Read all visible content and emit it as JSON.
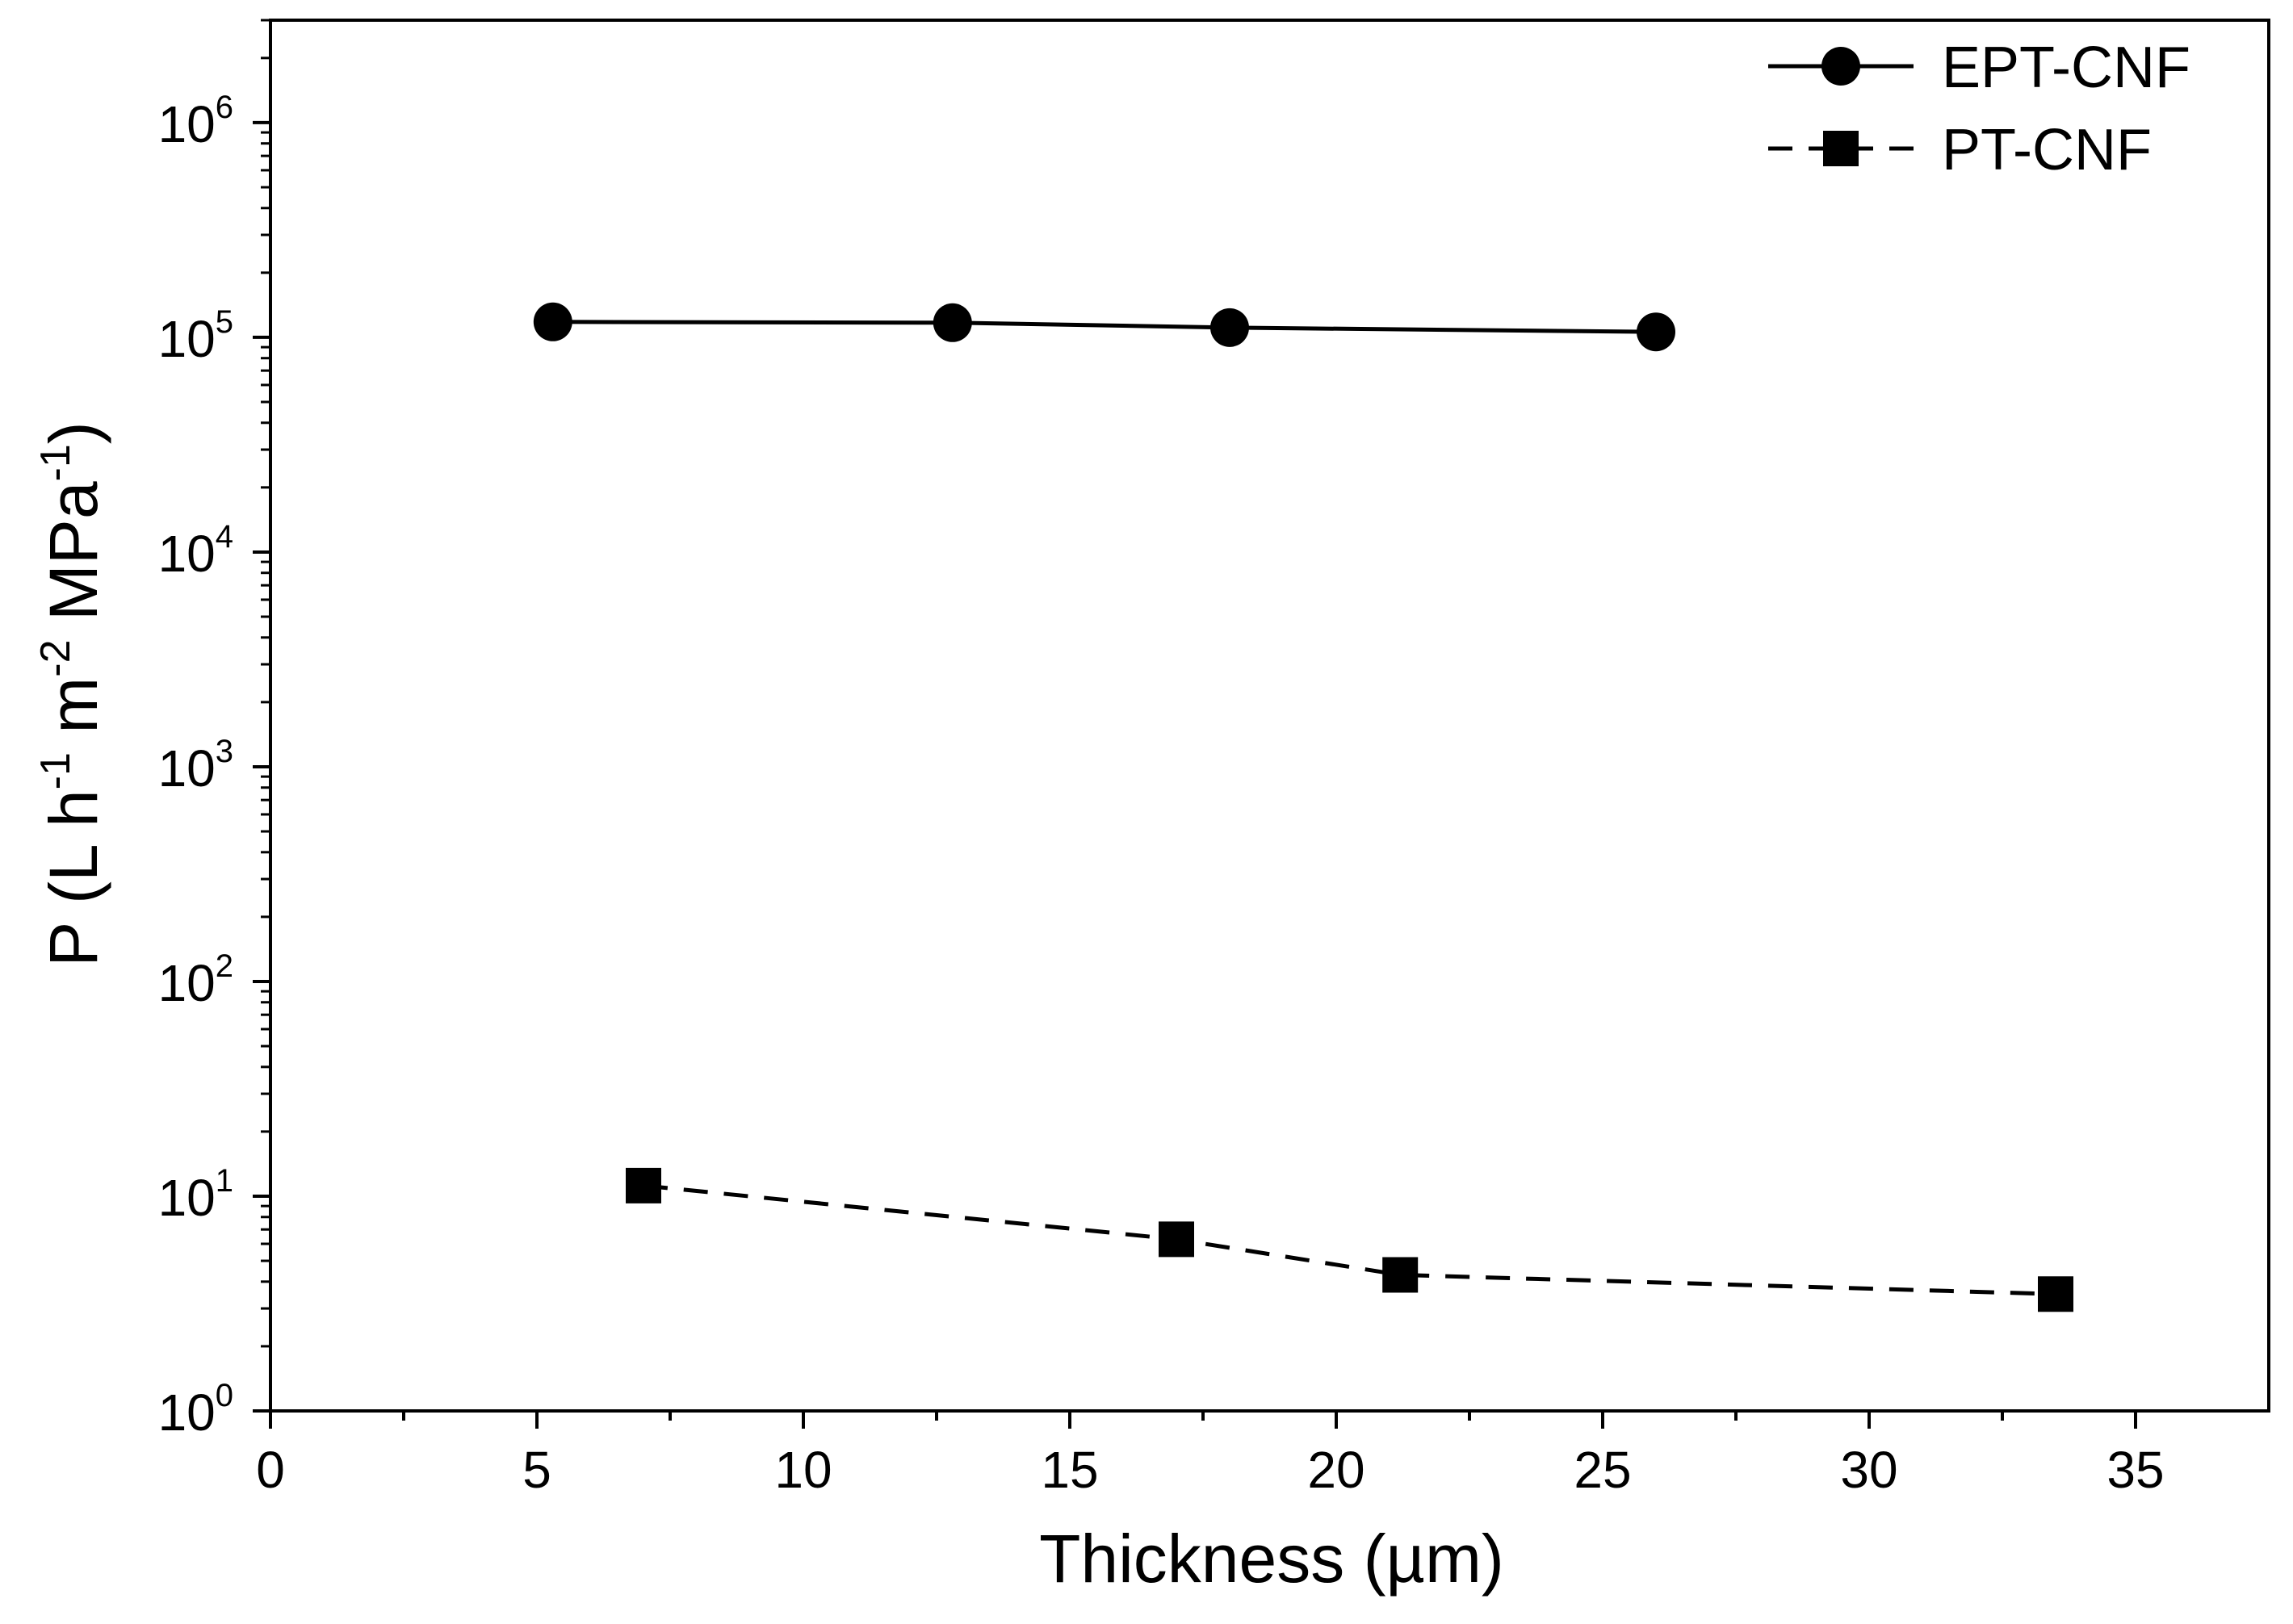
{
  "chart_data": {
    "type": "line",
    "title": "",
    "xlabel": "Thickness (µm)",
    "ylabel": {
      "parts": [
        "P (L h",
        "-1",
        " m",
        "-2",
        " MPa",
        "-1",
        ")"
      ]
    },
    "x_scale": "linear",
    "y_scale": "log",
    "xlim": [
      0,
      37.5
    ],
    "ylim": [
      1,
      3000000
    ],
    "x_ticks": [
      0,
      5,
      10,
      15,
      20,
      25,
      30,
      35
    ],
    "x_tick_labels": [
      "0",
      "5",
      "10",
      "15",
      "20",
      "25",
      "30",
      "35"
    ],
    "y_ticks": [
      1,
      10,
      100,
      1000,
      10000,
      100000,
      1000000
    ],
    "y_tick_labels": [
      {
        "base": "10",
        "exp": "0"
      },
      {
        "base": "10",
        "exp": "1"
      },
      {
        "base": "10",
        "exp": "2"
      },
      {
        "base": "10",
        "exp": "3"
      },
      {
        "base": "10",
        "exp": "4"
      },
      {
        "base": "10",
        "exp": "5"
      },
      {
        "base": "10",
        "exp": "6"
      }
    ],
    "grid": false,
    "legend_position": "top-right",
    "series": [
      {
        "name": "EPT-CNF",
        "marker": "circle",
        "line_style": "solid",
        "color": "#000000",
        "x": [
          5.3,
          12.8,
          18.0,
          26.0
        ],
        "y": [
          118000,
          117000,
          111000,
          106000
        ]
      },
      {
        "name": "PT-CNF",
        "marker": "square",
        "line_style": "dashed",
        "color": "#000000",
        "x": [
          7.0,
          17.0,
          21.2,
          33.5
        ],
        "y": [
          11.2,
          6.3,
          4.3,
          3.5
        ]
      }
    ]
  }
}
